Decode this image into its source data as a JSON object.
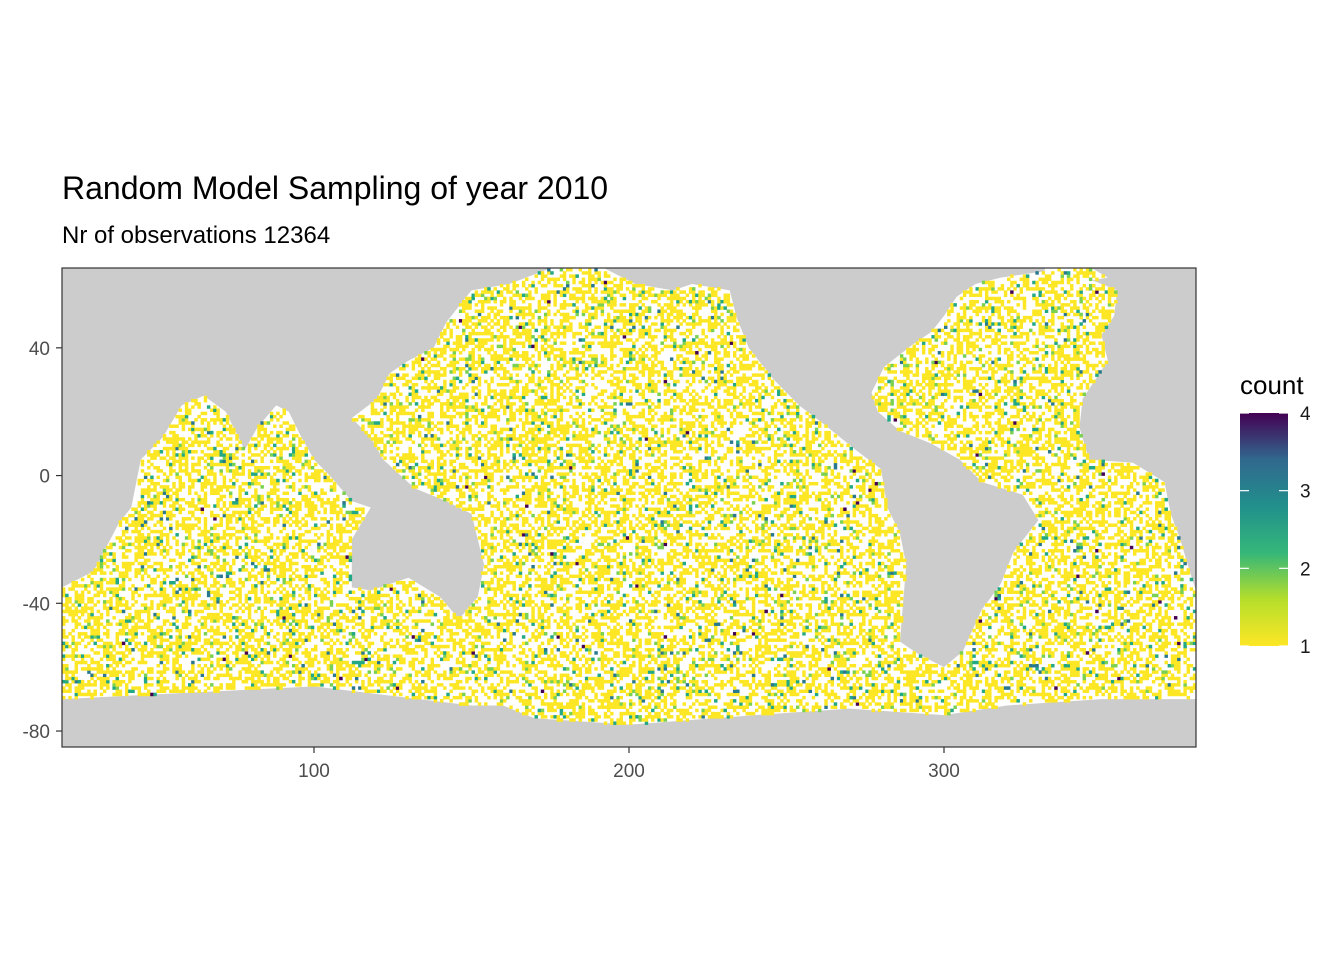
{
  "chart_data": {
    "type": "heatmap",
    "title": "Random Model Sampling of year 2010",
    "subtitle": "Nr of observations 12364",
    "xlabel": "",
    "ylabel": "",
    "xlim": [
      20,
      380
    ],
    "ylim": [
      -85,
      65
    ],
    "x_ticks": [
      100,
      200,
      300
    ],
    "y_ticks": [
      40,
      0,
      -40,
      -80
    ],
    "grid": false,
    "background": "land (gray) with ocean cells",
    "legend": {
      "title": "count",
      "position": "right",
      "min": 1,
      "max": 4,
      "ticks": [
        1,
        2,
        3,
        4
      ],
      "colormap": "viridis (reversed)"
    },
    "land_color": "#cccccc",
    "ocean_color": "#ffffff",
    "palette": [
      "#FDE725",
      "#7AD151",
      "#22A884",
      "#2A788E",
      "#414487",
      "#440154"
    ]
  }
}
